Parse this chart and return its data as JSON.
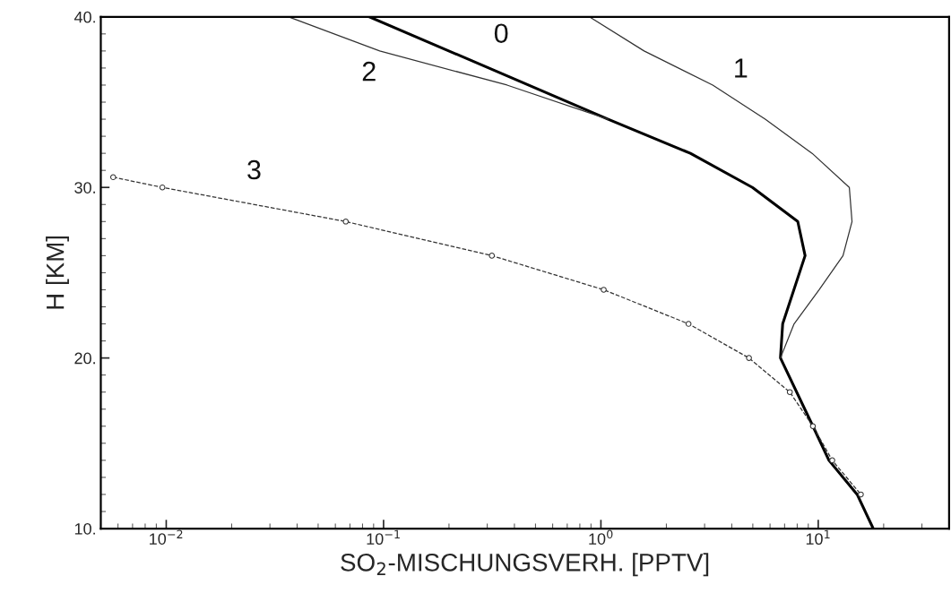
{
  "chart_data": {
    "type": "line",
    "xlabel": "SO$_{2}$-MISCHUNGSVERH. [PPTV]",
    "ylabel": "H [KM]",
    "log": "x",
    "xlim": [
      0.005,
      40
    ],
    "xticks": [
      {
        "value": 0.01,
        "label": "10$^{−2}$"
      },
      {
        "value": 0.1,
        "label": "10$^{−1}$"
      },
      {
        "value": 1,
        "label": "10$^{0}$"
      },
      {
        "value": 10,
        "label": "10$^{1}$"
      }
    ],
    "ylim": [
      10,
      40
    ],
    "yticks": [
      {
        "value": 10,
        "label": "10."
      },
      {
        "value": 20,
        "label": "20."
      },
      {
        "value": 30,
        "label": "30."
      },
      {
        "value": 40,
        "label": "40."
      }
    ],
    "grid": false,
    "legend": false,
    "series": [
      {
        "name": "0",
        "color": "#000000",
        "line_style": "solid",
        "marker": "none",
        "x": [
          0.086,
          1.08,
          2.58,
          4.98,
          8.05,
          8.7,
          6.86,
          6.7,
          9.45,
          11.2,
          15.1,
          17.9
        ],
        "values": [
          40,
          34,
          32,
          30,
          28,
          26,
          22,
          20,
          16,
          14,
          12,
          10
        ]
      },
      {
        "name": "1",
        "color": "#333333",
        "line_style": "solid",
        "marker": "none",
        "x": [
          0.885,
          1.58,
          3.27,
          5.7,
          9.37,
          13.9,
          14.3,
          13.0,
          10.1,
          7.74,
          6.7
        ],
        "values": [
          40,
          38,
          36,
          34,
          32,
          30,
          28,
          26,
          24,
          22,
          20
        ]
      },
      {
        "name": "2",
        "color": "#333333",
        "line_style": "solid",
        "marker": "none",
        "x": [
          0.0366,
          0.096,
          0.37,
          1.08
        ],
        "values": [
          40,
          38,
          36,
          34
        ]
      },
      {
        "name": "3",
        "color": "#333333",
        "line_style": "dashed",
        "marker": "circle",
        "x": [
          0.0057,
          0.0096,
          0.067,
          0.315,
          1.03,
          2.53,
          4.8,
          7.4,
          9.45,
          11.6,
          15.7
        ],
        "values": [
          30.6,
          30,
          28,
          26,
          24,
          22,
          20,
          18,
          16,
          14,
          12
        ]
      }
    ]
  }
}
